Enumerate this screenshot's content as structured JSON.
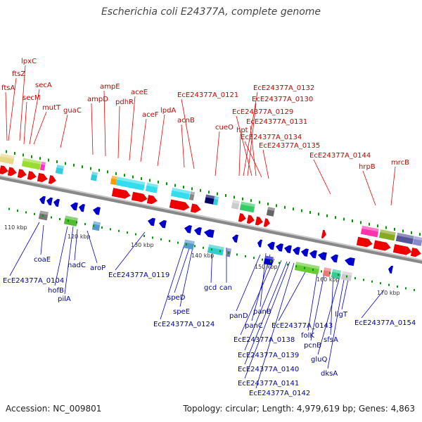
{
  "title": "Escherichia coli E24377A, complete genome",
  "footer": {
    "accession": "Accession: NC_009801",
    "topology": "Topology: circular; Length: 4,979,619 bp; Genes: 4,863"
  },
  "colors": {
    "forward": "#ee0000",
    "reverse": "#0000cc",
    "backbone": "#888888",
    "tick": "#009900"
  },
  "scale_labels": [
    "110 kbp",
    "120 kbp",
    "130 kbp",
    "140 kbp",
    "150 kbp",
    "160 kbp",
    "170 kbp"
  ],
  "top_labels": [
    "ftsA",
    "ftsZ",
    "lpxC",
    "secM",
    "secA",
    "mutT",
    "guaC",
    "ampD",
    "ampE",
    "pdhR",
    "aceE",
    "aceF",
    "lpdA",
    "acnB",
    "EcE24377A_0121",
    "cueO",
    "hpt",
    "EcE24377A_0132",
    "EcE24377A_0130",
    "EcE24377A_0129",
    "EcE24377A_0131",
    "EcE24377A_0134",
    "EcE24377A_0135",
    "EcE24377A_0144",
    "hrpB",
    "mrcB"
  ],
  "bottom_labels": [
    "coaE",
    "EcE24377A_0104",
    "hofB",
    "pilA",
    "nadC",
    "aroP",
    "EcE24377A_0119",
    "speD",
    "speE",
    "EcE24377A_0124",
    "gcd",
    "can",
    "panD",
    "panB",
    "panC",
    "EcE24377A_0138",
    "EcE24377A_0139",
    "EcE24377A_0140",
    "EcE24377A_0141",
    "EcE24377A_0142",
    "EcE24377A_0143",
    "folK",
    "pcnB",
    "sfsA",
    "gluQ",
    "dksA",
    "ligT",
    "EcE24377A_0154"
  ]
}
